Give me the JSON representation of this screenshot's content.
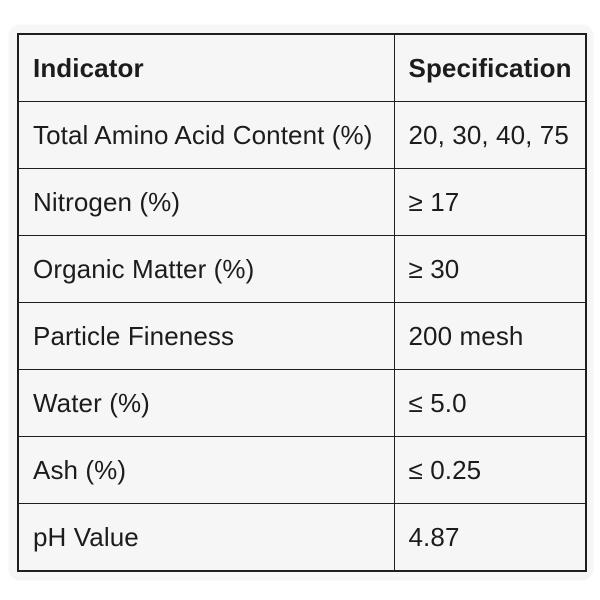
{
  "colors": {
    "page_background": "#ffffff",
    "card_background": "#f6f6f7",
    "border": "#1f1f21",
    "text": "#1c1c1e"
  },
  "table": {
    "headers": {
      "indicator": "Indicator",
      "specification": "Specification"
    },
    "rows": [
      {
        "indicator": "Total Amino Acid Content (%)",
        "specification": "20, 30, 40, 75"
      },
      {
        "indicator": "Nitrogen (%)",
        "specification": "≥ 17"
      },
      {
        "indicator": "Organic Matter (%)",
        "specification": "≥ 30"
      },
      {
        "indicator": "Particle Fineness",
        "specification": "200 mesh"
      },
      {
        "indicator": "Water (%)",
        "specification": "≤ 5.0"
      },
      {
        "indicator": "Ash (%)",
        "specification": "≤ 0.25"
      },
      {
        "indicator": "pH Value",
        "specification": "4.87"
      }
    ]
  }
}
